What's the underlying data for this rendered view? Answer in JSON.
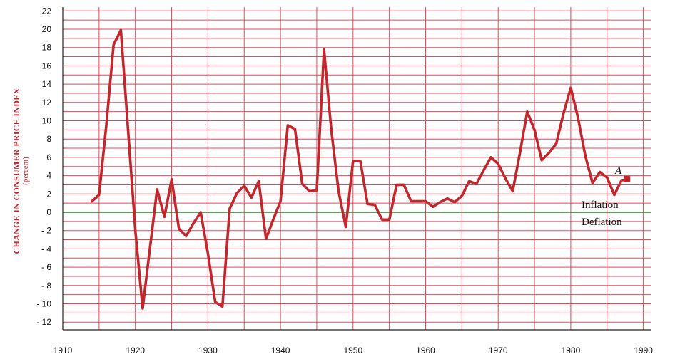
{
  "chart_data": {
    "type": "line",
    "ylabel": "CHANGE IN CONSUMER PRICE INDEX",
    "ylabel_unit": "(percent)",
    "xlim": [
      1910,
      1990
    ],
    "ylim": [
      -12,
      22
    ],
    "x_ticks": [
      1910,
      1920,
      1930,
      1940,
      1950,
      1960,
      1970,
      1980,
      1990
    ],
    "y_ticks": [
      -12,
      -10,
      -8,
      -6,
      -4,
      -2,
      0,
      2,
      4,
      6,
      8,
      10,
      12,
      14,
      16,
      18,
      20,
      22
    ],
    "y_tick_labels": [
      "- 12",
      "- 10",
      "- 8",
      "- 6",
      "- 4",
      "- 2",
      "0",
      "2",
      "4",
      "6",
      "8",
      "10",
      "12",
      "14",
      "16",
      "18",
      "20",
      "22"
    ],
    "grid": true,
    "series": [
      {
        "x": [
          1914,
          1915,
          1916,
          1917,
          1918,
          1919,
          1920,
          1921,
          1922,
          1923,
          1924,
          1925,
          1926,
          1927,
          1928,
          1929,
          1930,
          1931,
          1932,
          1933,
          1934,
          1935,
          1936,
          1937,
          1938,
          1939,
          1940,
          1941,
          1942,
          1943,
          1944,
          1945,
          1946,
          1947,
          1948,
          1949,
          1950,
          1951,
          1952,
          1953,
          1954,
          1955,
          1956,
          1957,
          1958,
          1959,
          1960,
          1961,
          1962,
          1963,
          1964,
          1965,
          1966,
          1967,
          1968,
          1969,
          1970,
          1971,
          1972,
          1973,
          1974,
          1975,
          1976,
          1977,
          1978,
          1979,
          1980,
          1981,
          1982,
          1983,
          1984,
          1985,
          1986,
          1987,
          1988
        ],
        "values": [
          1.2,
          1.9,
          9.5,
          18.3,
          19.9,
          9.0,
          -2.0,
          -10.5,
          -4.0,
          2.5,
          -0.5,
          3.6,
          -1.8,
          -2.6,
          -1.2,
          0.0,
          -4.5,
          -9.8,
          -10.3,
          0.4,
          2.1,
          2.9,
          1.6,
          3.4,
          -2.9,
          -0.8,
          1.2,
          9.5,
          9.1,
          3.1,
          2.3,
          2.4,
          17.8,
          9.0,
          2.3,
          -1.6,
          5.6,
          5.6,
          0.9,
          0.8,
          -0.8,
          -0.8,
          3.0,
          3.0,
          1.2,
          1.2,
          1.2,
          0.6,
          1.1,
          1.5,
          1.1,
          1.8,
          3.4,
          3.1,
          4.6,
          6.0,
          5.3,
          3.7,
          2.3,
          6.5,
          11.0,
          9.0,
          5.7,
          6.5,
          7.5,
          10.8,
          13.6,
          10.3,
          6.2,
          3.2,
          4.4,
          3.8,
          1.9,
          3.5,
          3.6
        ]
      }
    ],
    "annotations": {
      "point_label": "A",
      "inflation_label": "Inflation",
      "deflation_label": "Deflation"
    },
    "colors": {
      "grid": "#e54858",
      "line": "#c1272d",
      "zero_line": "#2e7d32",
      "axis_title": "#c1272d"
    }
  }
}
